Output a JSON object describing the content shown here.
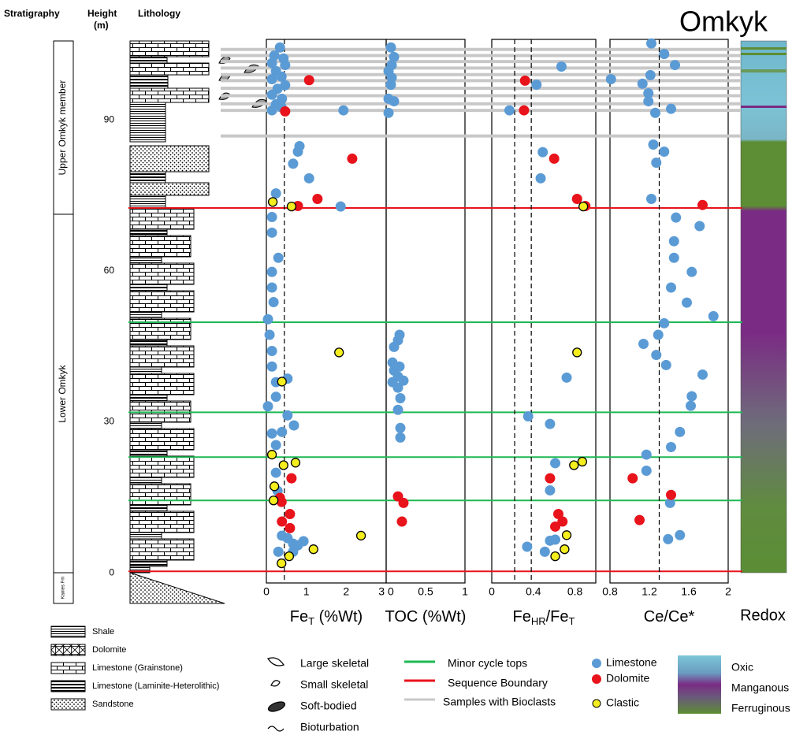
{
  "header": {
    "stratigraphy": "Stratigraphy",
    "height": [
      "Height",
      "(m)"
    ],
    "lithology": "Lithology",
    "title": "Omkyk",
    "redox": "Redox"
  },
  "units": [
    "Upper Omkyk member",
    "Lower Omkyk",
    "Kanies Fm"
  ],
  "height_axis": {
    "ylim": [
      -2,
      106
    ],
    "yticks": [
      0,
      30,
      60,
      90
    ]
  },
  "point_types": [
    {
      "name": "Limestone",
      "color": "#5b9bd5"
    },
    {
      "name": "Dolomite",
      "color": "#e8131b"
    },
    {
      "name": "Clastic",
      "color": "#f4ee1e",
      "edgecolor": "#000000"
    }
  ],
  "horizons": [
    {
      "name": "Minor cycle tops",
      "color": "#1db954",
      "heights": [
        49.8,
        31.9,
        23,
        14.4
      ]
    },
    {
      "name": "Sequence Boundary",
      "color": "#e8131b",
      "heights": [
        72.5,
        0.3
      ]
    },
    {
      "name": "Samples with Bioclasts",
      "color": "#c8c8c8",
      "heights": [
        104,
        102.8,
        101.6,
        100.3,
        99,
        97.8,
        96.3,
        94.8,
        93.2,
        91.9,
        86.8
      ]
    }
  ],
  "chart_data": [
    {
      "type": "scatter",
      "xlabel": [
        "Fe",
        "T",
        " (%Wt)"
      ],
      "xlim": [
        0,
        3
      ],
      "xticks": [
        0,
        1,
        2,
        3
      ],
      "reference_lines": [
        0.45
      ],
      "series": [
        {
          "x": [
            0.34,
            0.2,
            0.43,
            0.14,
            0.47,
            0.24,
            0.38,
            0.14,
            0.47,
            0.28,
            0.14,
            0.39,
            0.24,
            0.14,
            0.38,
            1.93,
            0.83,
            0.79,
            0.67,
            1.07,
            0.24,
            1.86,
            0.14,
            0.14,
            0.3,
            0.14,
            0.14,
            0.18,
            0.04,
            0.08,
            0.14,
            0.14,
            0.53,
            0.24,
            0.24,
            0.04,
            0.53,
            0.39,
            0.69,
            0.14,
            0.24,
            0.24,
            0.28,
            0.39,
            0.53,
            0.67,
            0.79,
            0.93,
            0.67,
            0.3
          ],
          "y": [
            104.4,
            102.8,
            102.2,
            101.3,
            100.9,
            99.7,
            98.6,
            98.1,
            96.9,
            96.2,
            95,
            94.2,
            93.1,
            91.9,
            92.5,
            91.9,
            84.8,
            83.7,
            81.3,
            78.4,
            75.4,
            72.8,
            70.7,
            67.6,
            62.6,
            59.8,
            56.7,
            53.8,
            50.4,
            47.3,
            44.1,
            41,
            38.6,
            37.9,
            35,
            33.1,
            31.3,
            28,
            29.3,
            27.7,
            25.4,
            19.9,
            16.3,
            7.4,
            6.9,
            5.8,
            5.5,
            6.3,
            4.2,
            4.2
          ]
        },
        {
          "x": [
            1.07,
            0.47,
            2.15,
            1.28,
            0.79,
            0.63,
            0.34,
            0.38,
            0.59,
            0.39,
            0.59
          ],
          "y": [
            97.9,
            91.7,
            82.3,
            74.3,
            72.9,
            18.8,
            14.9,
            14.1,
            11.7,
            10.2,
            8.9
          ]
        },
        {
          "x": [
            0.16,
            0.63,
            1.82,
            0.39,
            0.14,
            0.73,
            0.43,
            0.2,
            0.18,
            2.37,
            1.18,
            0.57,
            0.38
          ],
          "y": [
            73.7,
            72.8,
            43.8,
            38,
            23.5,
            21.9,
            21.4,
            17.2,
            14.4,
            7.4,
            4.7,
            3.3,
            1.9
          ]
        }
      ]
    },
    {
      "type": "scatter",
      "xlabel": [
        "TOC (%Wt)"
      ],
      "xlim": [
        0,
        1
      ],
      "xticks": [
        0,
        0.5,
        1
      ],
      "reference_lines": [],
      "series": [
        {
          "x": [
            0.06,
            0.1,
            0.07,
            0.03,
            0.07,
            0.06,
            0.03,
            0.1,
            0.03,
            0.17,
            0.15,
            0.1,
            0.08,
            0.17,
            0.1,
            0.15,
            0.22,
            0.08,
            0.15,
            0.18,
            0.15,
            0.18,
            0.18
          ],
          "y": [
            104.4,
            102.5,
            100.9,
            99.7,
            98.4,
            97,
            94.2,
            93.7,
            91.4,
            47.3,
            46.2,
            44.9,
            41.8,
            41,
            40.2,
            39,
            38.2,
            37.9,
            36.8,
            34.7,
            32.4,
            28.8,
            26.9
          ]
        },
        {
          "x": [
            0.15,
            0.22,
            0.2
          ],
          "y": [
            15.2,
            13.9,
            10.2
          ]
        },
        {
          "x": [],
          "y": []
        }
      ]
    },
    {
      "type": "scatter",
      "xlabel": [
        "Fe",
        "HR",
        "/Fe",
        "T"
      ],
      "xlim": [
        0,
        1
      ],
      "xticks": [
        0,
        0.4,
        0.8
      ],
      "reference_lines": [
        0.22,
        0.38
      ],
      "series": [
        {
          "x": [
            0.67,
            0.43,
            0.17,
            0.49,
            0.47,
            0.72,
            0.35,
            0.56,
            0.61,
            0.56,
            0.61,
            0.56,
            0.34,
            0.51
          ],
          "y": [
            100.6,
            97,
            91.9,
            83.6,
            78.4,
            38.8,
            31.1,
            29.6,
            21.8,
            16.4,
            6.6,
            6.4,
            5.2,
            4.2
          ]
        },
        {
          "x": [
            0.32,
            0.31,
            0.6,
            0.82,
            0.9,
            0.56,
            0.64,
            0.68,
            0.61
          ],
          "y": [
            97.8,
            91.9,
            82.3,
            74.3,
            72.9,
            18.8,
            11.7,
            10.2,
            9.2
          ]
        },
        {
          "x": [
            0.88,
            0.82,
            0.87,
            0.79,
            0.72,
            0.7,
            0.61
          ],
          "y": [
            72.8,
            43.8,
            22.1,
            21.4,
            7.5,
            4.7,
            3.3
          ]
        }
      ]
    },
    {
      "type": "scatter",
      "xlabel": [
        "Ce/Ce*"
      ],
      "xlim": [
        0.8,
        2
      ],
      "xticks": [
        0.8,
        1.2,
        1.6,
        2
      ],
      "reference_lines": [
        1.3
      ],
      "series": [
        {
          "x": [
            1.22,
            1.35,
            1.46,
            0.81,
            1.21,
            1.13,
            1.19,
            1.19,
            1.42,
            1.26,
            1.24,
            1.35,
            1.27,
            1.22,
            1.47,
            1.71,
            1.45,
            1.45,
            1.63,
            1.42,
            1.58,
            1.85,
            1.35,
            1.29,
            1.14,
            1.27,
            1.37,
            1.74,
            1.63,
            1.62,
            1.51,
            1.42,
            1.17,
            1.17,
            1.41,
            1.51,
            1.39
          ],
          "y": [
            105.2,
            103.1,
            100.9,
            98.1,
            98.9,
            97.2,
            95.3,
            93.7,
            92.2,
            91.4,
            85.1,
            83.7,
            81.5,
            74.3,
            70.6,
            68.9,
            65.9,
            62.6,
            59.8,
            56.7,
            53.7,
            51,
            49.6,
            47.3,
            45.5,
            43.3,
            41.3,
            39.4,
            35.1,
            33.2,
            28,
            25,
            23.5,
            20.3,
            13.9,
            7.5,
            6.7
          ]
        },
        {
          "x": [
            1.74,
            1.03,
            1.42,
            1.1
          ],
          "y": [
            73.1,
            18.8,
            15.5,
            10.5
          ]
        },
        {
          "x": [],
          "y": []
        }
      ]
    }
  ],
  "legend": {
    "lithology": [
      "Shale",
      "Dolomite",
      "Limestone (Grainstone)",
      "Limestone (Laminite-Heterolithic)",
      "Sandstone"
    ],
    "fossils": [
      "Large skeletal",
      "Small skeletal",
      "Soft-bodied",
      "Bioturbation"
    ],
    "redox": [
      "Oxic",
      "Manganous",
      "Ferruginous"
    ]
  }
}
